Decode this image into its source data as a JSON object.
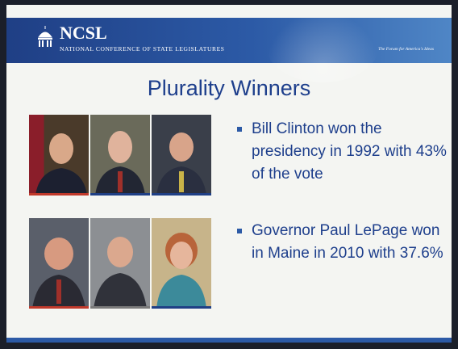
{
  "header": {
    "logo": "NCSL",
    "organization": "National Conference of State Legislatures",
    "tagline": "The Forum for America's Ideas"
  },
  "slide": {
    "title": "Plurality Winners",
    "bullets": [
      "Bill Clinton won the presidency in 1992 with 43% of the vote",
      "Governor Paul LePage won in Maine in 2010 with 37.6%"
    ]
  }
}
